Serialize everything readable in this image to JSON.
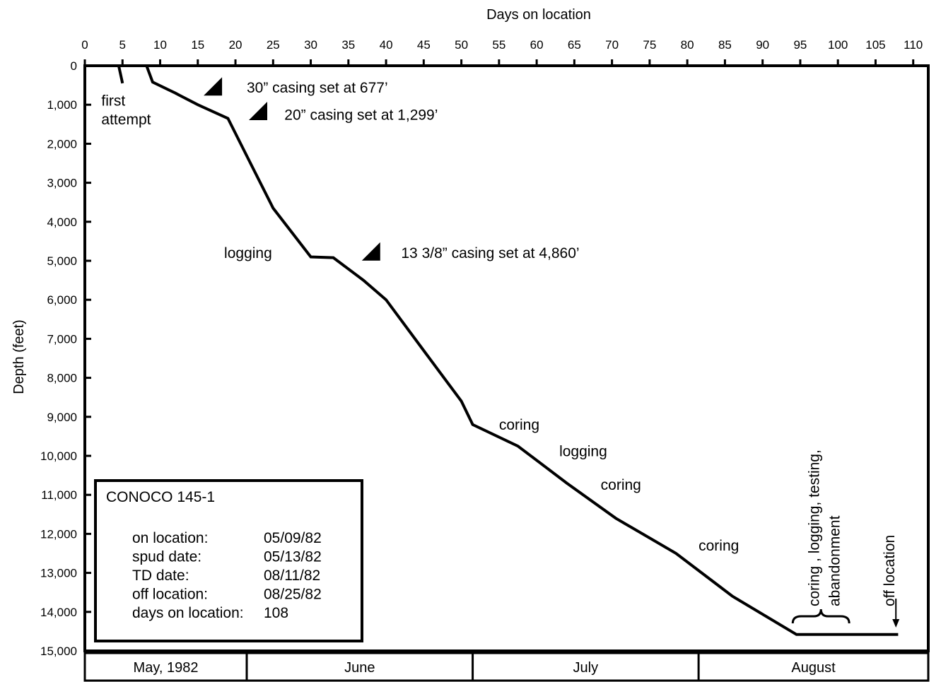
{
  "chart_data": {
    "type": "line",
    "title": "",
    "xlabel": "Days on location",
    "ylabel": "Depth  (feet)",
    "xlim": [
      0,
      112
    ],
    "ylim": [
      0,
      15000
    ],
    "y_inverted": true,
    "x_ticks": [
      0,
      5,
      10,
      15,
      20,
      25,
      30,
      35,
      40,
      45,
      50,
      55,
      60,
      65,
      70,
      75,
      80,
      85,
      90,
      95,
      100,
      105,
      110
    ],
    "y_ticks": [
      0,
      1000,
      2000,
      3000,
      4000,
      5000,
      6000,
      7000,
      8000,
      9000,
      10000,
      11000,
      12000,
      13000,
      14000,
      15000
    ],
    "y_tick_labels": [
      "0",
      "1,000",
      "2,000",
      "3,000",
      "4,000",
      "5,000",
      "6,000",
      "7,000",
      "8,000",
      "9,000",
      "10,000",
      "11,000",
      "12,000",
      "13,000",
      "14,000",
      "15,000"
    ],
    "grid": false,
    "series": [
      {
        "x": [
          4.5,
          5.0
        ],
        "y": [
          0,
          450
        ]
      },
      {
        "x": [
          8.2,
          9.0,
          12.0,
          15.0,
          19.0,
          22.0,
          25.0,
          30.0,
          33.0,
          37.0,
          40.0,
          45.0,
          50.0,
          51.5,
          57.5,
          64.0,
          70.5,
          78.5,
          86.0,
          94.5,
          108.0
        ],
        "y": [
          0,
          420,
          700,
          1000,
          1350,
          2500,
          3650,
          4900,
          4920,
          5500,
          6000,
          7300,
          8600,
          9200,
          9750,
          10700,
          11600,
          12500,
          13600,
          14580,
          14580
        ]
      }
    ],
    "annotations": [
      {
        "text": "first",
        "x": 2.2,
        "y": 900
      },
      {
        "text": "attempt",
        "x": 2.2,
        "y": 1380
      },
      {
        "text": "30” casing set at 677’",
        "x": 21.5,
        "y": 560
      },
      {
        "text": "20” casing set at 1,299’",
        "x": 26.5,
        "y": 1260
      },
      {
        "text": "logging",
        "x": 18.5,
        "y": 4800
      },
      {
        "text": "13 3/8” casing set at 4,860’",
        "x": 42.0,
        "y": 4800
      },
      {
        "text": "coring",
        "x": 55.0,
        "y": 9200
      },
      {
        "text": "logging",
        "x": 63.0,
        "y": 9880
      },
      {
        "text": "coring",
        "x": 68.5,
        "y": 10740
      },
      {
        "text": "coring",
        "x": 81.5,
        "y": 12300
      }
    ],
    "casing_markers": [
      {
        "x": 17.0,
        "y": 530
      },
      {
        "x": 23.0,
        "y": 1160
      },
      {
        "x": 38.0,
        "y": 4760
      }
    ],
    "rotated_annotations": [
      {
        "text": "coring , logging, testing,",
        "x": 97.5
      },
      {
        "text": "abandonment",
        "x": 100.2
      },
      {
        "text": "off location",
        "x": 107.5
      }
    ],
    "end_bracket": {
      "x_from": 94.0,
      "x_to": 101.5
    },
    "off_location_arrow": {
      "x": 107.7
    },
    "month_bands": [
      {
        "label": "May, 1982",
        "start": 0,
        "end": 21.5
      },
      {
        "label": "June",
        "start": 21.5,
        "end": 51.5
      },
      {
        "label": "July",
        "start": 51.5,
        "end": 81.5
      },
      {
        "label": "August",
        "start": 81.5,
        "end": 112
      }
    ],
    "info_box": {
      "title": "CONOCO 145-1",
      "rows": [
        {
          "label": "on location:",
          "value": "05/09/82"
        },
        {
          "label": "spud date:",
          "value": "05/13/82"
        },
        {
          "label": "TD date:",
          "value": "08/11/82"
        },
        {
          "label": "off location:",
          "value": "08/25/82"
        },
        {
          "label": "days on location:",
          "value": "108"
        }
      ]
    }
  }
}
